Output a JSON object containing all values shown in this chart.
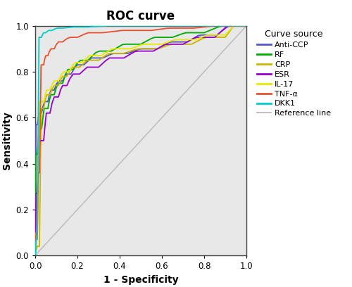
{
  "title": "ROC curve",
  "xlabel": "1 - Specificity",
  "ylabel": "Sensitivity",
  "legend_title": "Curve source",
  "xlim": [
    0.0,
    1.0
  ],
  "ylim": [
    0.0,
    1.0
  ],
  "xticks": [
    0.0,
    0.2,
    0.4,
    0.6,
    0.8,
    1.0
  ],
  "yticks": [
    0.0,
    0.2,
    0.4,
    0.6,
    0.8,
    1.0
  ],
  "background_color": "#e8e8e8",
  "fig_bg": "#ffffff",
  "ref_color": "#c0c0c0",
  "curves": {
    "Anti-CCP": {
      "color": "#5555cc",
      "key_points": [
        [
          0,
          0
        ],
        [
          0.01,
          0.57
        ],
        [
          0.03,
          0.62
        ],
        [
          0.06,
          0.67
        ],
        [
          0.09,
          0.72
        ],
        [
          0.13,
          0.76
        ],
        [
          0.17,
          0.79
        ],
        [
          0.23,
          0.83
        ],
        [
          0.32,
          0.86
        ],
        [
          0.44,
          0.88
        ],
        [
          0.58,
          0.9
        ],
        [
          0.72,
          0.93
        ],
        [
          0.86,
          0.96
        ],
        [
          1.0,
          1.0
        ]
      ]
    },
    "RF": {
      "color": "#00aa00",
      "key_points": [
        [
          0,
          0
        ],
        [
          0.01,
          0.44
        ],
        [
          0.03,
          0.55
        ],
        [
          0.06,
          0.64
        ],
        [
          0.09,
          0.7
        ],
        [
          0.13,
          0.75
        ],
        [
          0.18,
          0.81
        ],
        [
          0.25,
          0.85
        ],
        [
          0.36,
          0.89
        ],
        [
          0.5,
          0.92
        ],
        [
          0.65,
          0.95
        ],
        [
          0.8,
          0.97
        ],
        [
          1.0,
          1.0
        ]
      ]
    },
    "CRP": {
      "color": "#c8b400",
      "key_points": [
        [
          0,
          0
        ],
        [
          0.02,
          0.04
        ],
        [
          0.04,
          0.64
        ],
        [
          0.07,
          0.7
        ],
        [
          0.11,
          0.74
        ],
        [
          0.15,
          0.78
        ],
        [
          0.21,
          0.82
        ],
        [
          0.3,
          0.85
        ],
        [
          0.42,
          0.88
        ],
        [
          0.58,
          0.9
        ],
        [
          0.74,
          0.92
        ],
        [
          0.9,
          0.95
        ],
        [
          1.0,
          1.0
        ]
      ]
    },
    "ESR": {
      "color": "#9900cc",
      "key_points": [
        [
          0,
          0
        ],
        [
          0.01,
          0.27
        ],
        [
          0.04,
          0.5
        ],
        [
          0.07,
          0.62
        ],
        [
          0.11,
          0.69
        ],
        [
          0.15,
          0.74
        ],
        [
          0.21,
          0.79
        ],
        [
          0.3,
          0.82
        ],
        [
          0.42,
          0.86
        ],
        [
          0.56,
          0.89
        ],
        [
          0.7,
          0.92
        ],
        [
          0.85,
          0.95
        ],
        [
          1.0,
          1.0
        ]
      ]
    },
    "IL-17": {
      "color": "#e8e800",
      "key_points": [
        [
          0,
          0
        ],
        [
          0.01,
          0.1
        ],
        [
          0.04,
          0.67
        ],
        [
          0.07,
          0.72
        ],
        [
          0.11,
          0.76
        ],
        [
          0.16,
          0.8
        ],
        [
          0.22,
          0.84
        ],
        [
          0.31,
          0.87
        ],
        [
          0.45,
          0.9
        ],
        [
          0.6,
          0.92
        ],
        [
          0.76,
          0.94
        ],
        [
          0.9,
          0.96
        ],
        [
          1.0,
          1.0
        ]
      ]
    },
    "TNF-α": {
      "color": "#e85030",
      "key_points": [
        [
          0,
          0
        ],
        [
          0.01,
          0.1
        ],
        [
          0.02,
          0.36
        ],
        [
          0.04,
          0.83
        ],
        [
          0.06,
          0.87
        ],
        [
          0.09,
          0.9
        ],
        [
          0.13,
          0.93
        ],
        [
          0.2,
          0.95
        ],
        [
          0.32,
          0.97
        ],
        [
          0.55,
          0.98
        ],
        [
          0.75,
          0.99
        ],
        [
          1.0,
          1.0
        ]
      ]
    },
    "DKK1": {
      "color": "#00cccc",
      "key_points": [
        [
          0,
          0
        ],
        [
          0.01,
          0.07
        ],
        [
          0.03,
          0.95
        ],
        [
          0.05,
          0.97
        ],
        [
          0.08,
          0.98
        ],
        [
          0.13,
          0.99
        ],
        [
          0.25,
          0.995
        ],
        [
          0.5,
          1.0
        ],
        [
          1.0,
          1.0
        ]
      ]
    }
  }
}
